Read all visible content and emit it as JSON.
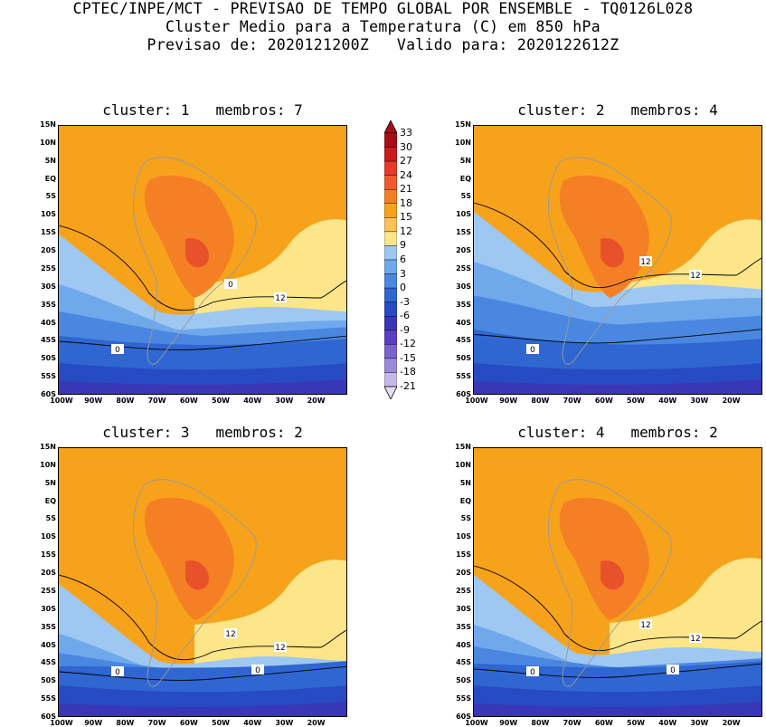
{
  "header": {
    "line1": "CPTEC/INPE/MCT - PREVISAO DE TEMPO GLOBAL POR ENSEMBLE - TQ0126L028",
    "line2": "Cluster Medio para a Temperatura (C) em 850 hPa",
    "line3": "Previsao de: 2020121200Z   Valido para: 2020122612Z"
  },
  "panels": [
    {
      "title": "cluster: 1   membros: 7",
      "labels": [
        "12",
        "0",
        "0"
      ]
    },
    {
      "title": "cluster: 2   membros: 4",
      "labels": [
        "12",
        "12",
        "0"
      ]
    },
    {
      "title": "cluster: 3   membros: 2",
      "labels": [
        "12",
        "12",
        "0",
        "0"
      ]
    },
    {
      "title": "cluster: 4   membros: 2",
      "labels": [
        "12",
        "12",
        "0",
        "0"
      ]
    }
  ],
  "axes": {
    "lat_ticks": [
      "15N",
      "10N",
      "5N",
      "EQ",
      "5S",
      "10S",
      "15S",
      "20S",
      "25S",
      "30S",
      "35S",
      "40S",
      "45S",
      "50S",
      "55S",
      "60S"
    ],
    "lon_ticks": [
      "100W",
      "90W",
      "80W",
      "70W",
      "60W",
      "50W",
      "40W",
      "30W",
      "20W"
    ]
  },
  "colorbar": {
    "labels": [
      "33",
      "30",
      "27",
      "24",
      "21",
      "18",
      "15",
      "12",
      "9",
      "6",
      "3",
      "0",
      "-3",
      "-6",
      "-9",
      "-12",
      "-15",
      "-18",
      "-21"
    ],
    "colors": [
      "#a50f15",
      "#c81c1c",
      "#e43a2a",
      "#f05a2a",
      "#f57f25",
      "#f7a21b",
      "#fbc25a",
      "#fde58a",
      "#9ec8f2",
      "#6fa9ec",
      "#4a87e0",
      "#2f66d2",
      "#274bc2",
      "#3a36b8",
      "#5b3fc0",
      "#7b63cf",
      "#9b8adb",
      "#c6b9ea"
    ]
  }
}
